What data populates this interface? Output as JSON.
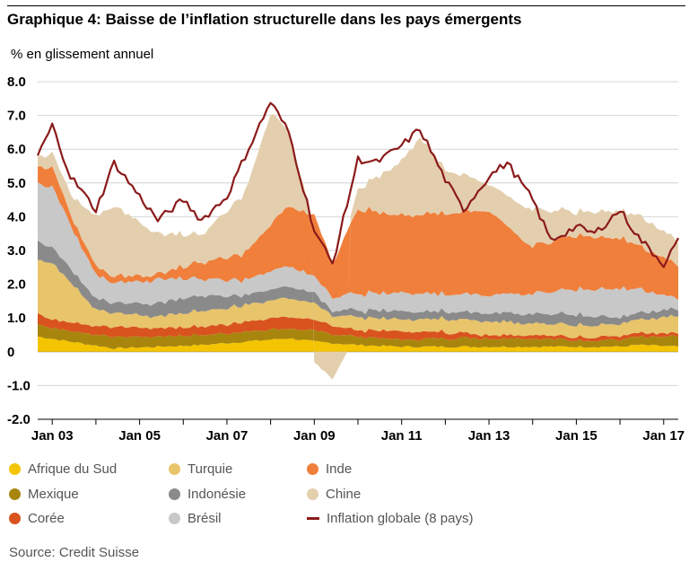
{
  "title": "Graphique 4: Baisse de l’inflation structurelle dans les pays émergents",
  "unit_label": "% en glissement annuel",
  "source": "Source: Credit Suisse",
  "chart_data": {
    "type": "area",
    "stacked": true,
    "x_start": "2002-09",
    "x_end": "2017-05",
    "x_ticks": [
      {
        "label": "Jan 03",
        "date": "2003-01"
      },
      {
        "label": "Jan 05",
        "date": "2005-01"
      },
      {
        "label": "Jan 07",
        "date": "2007-01"
      },
      {
        "label": "Jan 09",
        "date": "2009-01"
      },
      {
        "label": "Jan 11",
        "date": "2011-01"
      },
      {
        "label": "Jan 13",
        "date": "2013-01"
      },
      {
        "label": "Jan 15",
        "date": "2015-01"
      },
      {
        "label": "Jan 17",
        "date": "2017-01"
      }
    ],
    "y_ticks": [
      "-2.0",
      "-1.0",
      "0",
      "1.0",
      "2.0",
      "3.0",
      "4.0",
      "5.0",
      "6.0",
      "7.0",
      "8.0"
    ],
    "ylim": [
      -2,
      8
    ],
    "grid": "horizontal",
    "series": [
      {
        "name": "Afrique du Sud",
        "color": "#f5c400",
        "points": [
          [
            "2002-09",
            0.45
          ],
          [
            "2003-06",
            0.3
          ],
          [
            "2004-06",
            0.1
          ],
          [
            "2005-06",
            0.15
          ],
          [
            "2006-06",
            0.2
          ],
          [
            "2007-06",
            0.3
          ],
          [
            "2008-06",
            0.4
          ],
          [
            "2009-01",
            0.3
          ],
          [
            "2010-01",
            0.2
          ],
          [
            "2011-01",
            0.15
          ],
          [
            "2012-01",
            0.15
          ],
          [
            "2013-01",
            0.15
          ],
          [
            "2014-01",
            0.15
          ],
          [
            "2015-01",
            0.15
          ],
          [
            "2016-01",
            0.15
          ],
          [
            "2016-06",
            0.2
          ],
          [
            "2017-05",
            0.15
          ]
        ]
      },
      {
        "name": "Mexique",
        "color": "#a8860e",
        "points": [
          [
            "2002-09",
            0.35
          ],
          [
            "2003-06",
            0.3
          ],
          [
            "2004-06",
            0.35
          ],
          [
            "2005-06",
            0.3
          ],
          [
            "2006-06",
            0.3
          ],
          [
            "2007-06",
            0.3
          ],
          [
            "2008-06",
            0.3
          ],
          [
            "2009-01",
            0.3
          ],
          [
            "2010-01",
            0.25
          ],
          [
            "2011-01",
            0.2
          ],
          [
            "2012-01",
            0.25
          ],
          [
            "2013-01",
            0.25
          ],
          [
            "2014-01",
            0.25
          ],
          [
            "2015-01",
            0.2
          ],
          [
            "2016-01",
            0.2
          ],
          [
            "2017-05",
            0.3
          ]
        ]
      },
      {
        "name": "Corée",
        "color": "#d9531e",
        "points": [
          [
            "2002-09",
            0.3
          ],
          [
            "2003-06",
            0.25
          ],
          [
            "2004-06",
            0.3
          ],
          [
            "2005-06",
            0.25
          ],
          [
            "2006-06",
            0.25
          ],
          [
            "2007-06",
            0.3
          ],
          [
            "2008-06",
            0.35
          ],
          [
            "2009-01",
            0.3
          ],
          [
            "2010-01",
            0.2
          ],
          [
            "2011-01",
            0.25
          ],
          [
            "2012-01",
            0.2
          ],
          [
            "2013-01",
            0.1
          ],
          [
            "2014-01",
            0.1
          ],
          [
            "2015-01",
            0.1
          ],
          [
            "2016-01",
            0.1
          ],
          [
            "2017-05",
            0.1
          ]
        ]
      },
      {
        "name": "Turquie",
        "color": "#e8c46a",
        "points": [
          [
            "2002-09",
            1.6
          ],
          [
            "2003-01",
            1.7
          ],
          [
            "2003-06",
            1.2
          ],
          [
            "2004-01",
            0.5
          ],
          [
            "2004-06",
            0.4
          ],
          [
            "2005-06",
            0.35
          ],
          [
            "2006-06",
            0.45
          ],
          [
            "2007-06",
            0.5
          ],
          [
            "2008-06",
            0.55
          ],
          [
            "2009-01",
            0.5
          ],
          [
            "2009-06",
            0.3
          ],
          [
            "2010-01",
            0.4
          ],
          [
            "2011-01",
            0.35
          ],
          [
            "2012-01",
            0.4
          ],
          [
            "2013-01",
            0.4
          ],
          [
            "2014-01",
            0.35
          ],
          [
            "2015-01",
            0.35
          ],
          [
            "2016-01",
            0.35
          ],
          [
            "2017-05",
            0.5
          ]
        ]
      },
      {
        "name": "Indonésie",
        "color": "#8a8a8a",
        "points": [
          [
            "2002-09",
            0.55
          ],
          [
            "2003-06",
            0.4
          ],
          [
            "2004-06",
            0.3
          ],
          [
            "2005-06",
            0.4
          ],
          [
            "2006-06",
            0.45
          ],
          [
            "2007-06",
            0.3
          ],
          [
            "2008-06",
            0.35
          ],
          [
            "2009-01",
            0.3
          ],
          [
            "2009-06",
            0.15
          ],
          [
            "2010-01",
            0.2
          ],
          [
            "2011-01",
            0.25
          ],
          [
            "2012-01",
            0.2
          ],
          [
            "2013-01",
            0.25
          ],
          [
            "2014-01",
            0.3
          ],
          [
            "2015-01",
            0.3
          ],
          [
            "2016-01",
            0.2
          ],
          [
            "2017-05",
            0.2
          ]
        ]
      },
      {
        "name": "Brésil",
        "color": "#c8c8c8",
        "points": [
          [
            "2002-09",
            1.7
          ],
          [
            "2003-01",
            1.8
          ],
          [
            "2003-06",
            1.3
          ],
          [
            "2004-01",
            0.7
          ],
          [
            "2004-06",
            0.6
          ],
          [
            "2005-06",
            0.7
          ],
          [
            "2006-06",
            0.5
          ],
          [
            "2007-06",
            0.45
          ],
          [
            "2008-06",
            0.6
          ],
          [
            "2009-01",
            0.5
          ],
          [
            "2009-06",
            0.4
          ],
          [
            "2010-01",
            0.5
          ],
          [
            "2011-01",
            0.55
          ],
          [
            "2012-01",
            0.5
          ],
          [
            "2013-01",
            0.55
          ],
          [
            "2014-01",
            0.6
          ],
          [
            "2015-01",
            0.75
          ],
          [
            "2016-01",
            0.85
          ],
          [
            "2016-06",
            0.7
          ],
          [
            "2017-05",
            0.3
          ]
        ]
      },
      {
        "name": "Inde",
        "color": "#f07f3c",
        "points": [
          [
            "2002-09",
            0.5
          ],
          [
            "2003-01",
            0.6
          ],
          [
            "2003-06",
            0.3
          ],
          [
            "2004-06",
            0.2
          ],
          [
            "2005-06",
            0.15
          ],
          [
            "2006-06",
            0.5
          ],
          [
            "2007-06",
            0.8
          ],
          [
            "2008-06",
            1.8
          ],
          [
            "2009-01",
            1.8
          ],
          [
            "2009-06",
            1.0
          ],
          [
            "2010-01",
            2.5
          ],
          [
            "2011-01",
            2.3
          ],
          [
            "2012-01",
            2.4
          ],
          [
            "2013-01",
            2.5
          ],
          [
            "2013-06",
            2.0
          ],
          [
            "2014-01",
            1.4
          ],
          [
            "2015-01",
            1.6
          ],
          [
            "2016-01",
            1.5
          ],
          [
            "2016-06",
            1.3
          ],
          [
            "2017-05",
            1.0
          ]
        ]
      },
      {
        "name": "Chine",
        "color": "#e3cfae",
        "points": [
          [
            "2002-09",
            0.3
          ],
          [
            "2003-01",
            0.4
          ],
          [
            "2003-06",
            0.6
          ],
          [
            "2004-06",
            2.1
          ],
          [
            "2005-06",
            1.2
          ],
          [
            "2006-06",
            0.8
          ],
          [
            "2007-06",
            1.8
          ],
          [
            "2008-01",
            3.3
          ],
          [
            "2008-06",
            2.2
          ],
          [
            "2009-01",
            -0.3
          ],
          [
            "2009-06",
            -0.8
          ],
          [
            "2010-01",
            0.6
          ],
          [
            "2011-01",
            1.6
          ],
          [
            "2011-06",
            2.3
          ],
          [
            "2012-01",
            1.3
          ],
          [
            "2013-01",
            0.8
          ],
          [
            "2013-06",
            0.9
          ],
          [
            "2014-01",
            1.1
          ],
          [
            "2015-01",
            0.7
          ],
          [
            "2016-01",
            0.8
          ],
          [
            "2016-06",
            0.9
          ],
          [
            "2017-05",
            0.7
          ]
        ]
      }
    ],
    "line": {
      "name": "Inflation globale (8 pays)",
      "color": "#8b1a1a",
      "points": [
        [
          "2002-09",
          5.8
        ],
        [
          "2003-01",
          6.7
        ],
        [
          "2003-06",
          5.2
        ],
        [
          "2004-01",
          4.2
        ],
        [
          "2004-06",
          5.6
        ],
        [
          "2005-01",
          4.6
        ],
        [
          "2005-06",
          3.9
        ],
        [
          "2006-01",
          4.5
        ],
        [
          "2006-06",
          3.9
        ],
        [
          "2007-01",
          4.6
        ],
        [
          "2007-06",
          5.8
        ],
        [
          "2008-01",
          7.4
        ],
        [
          "2008-06",
          6.5
        ],
        [
          "2009-01",
          3.6
        ],
        [
          "2009-06",
          2.6
        ],
        [
          "2010-01",
          5.7
        ],
        [
          "2010-06",
          5.6
        ],
        [
          "2011-01",
          6.1
        ],
        [
          "2011-06",
          6.6
        ],
        [
          "2012-01",
          5.1
        ],
        [
          "2012-06",
          4.2
        ],
        [
          "2013-01",
          5.2
        ],
        [
          "2013-06",
          5.6
        ],
        [
          "2014-01",
          4.5
        ],
        [
          "2014-06",
          3.3
        ],
        [
          "2015-01",
          3.7
        ],
        [
          "2015-06",
          3.5
        ],
        [
          "2016-01",
          4.2
        ],
        [
          "2016-06",
          3.4
        ],
        [
          "2017-01",
          2.6
        ],
        [
          "2017-05",
          3.3
        ]
      ]
    }
  },
  "legend": {
    "items": [
      {
        "label": "Afrique du Sud",
        "color": "#f5c400",
        "kind": "dot"
      },
      {
        "label": "Mexique",
        "color": "#a8860e",
        "kind": "dot"
      },
      {
        "label": "Corée",
        "color": "#d9531e",
        "kind": "dot"
      },
      {
        "label": "Turquie",
        "color": "#e8c46a",
        "kind": "dot"
      },
      {
        "label": "Indonésie",
        "color": "#8a8a8a",
        "kind": "dot"
      },
      {
        "label": "Brésil",
        "color": "#c8c8c8",
        "kind": "dot"
      },
      {
        "label": "Inde",
        "color": "#f07f3c",
        "kind": "dot"
      },
      {
        "label": "Chine",
        "color": "#e3cfae",
        "kind": "dot"
      },
      {
        "label": "Inflation globale (8 pays)",
        "color": "#8b1a1a",
        "kind": "line"
      }
    ]
  }
}
